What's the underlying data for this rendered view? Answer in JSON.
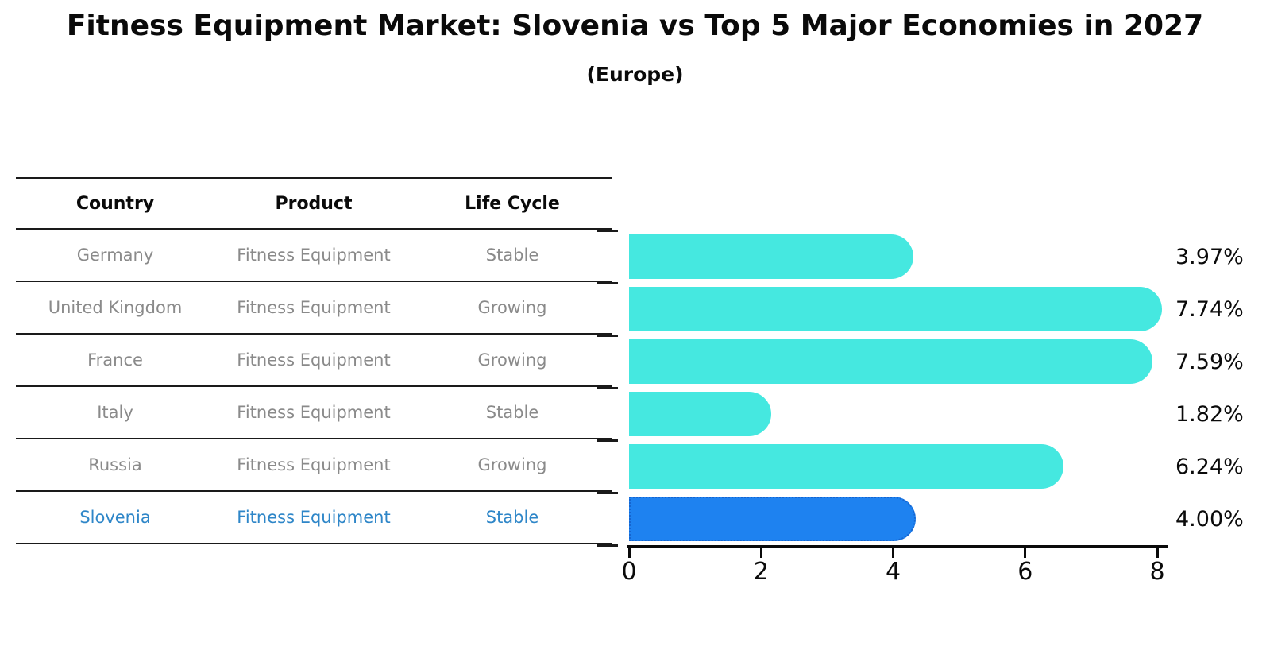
{
  "title": "Fitness Equipment Market: Slovenia vs Top 5 Major Economies in 2027",
  "subtitle": "(Europe)",
  "table": {
    "headers": [
      "Country",
      "Product",
      "Life Cycle"
    ],
    "rows": [
      {
        "country": "Germany",
        "product": "Fitness Equipment",
        "life_cycle": "Stable",
        "highlighted": false
      },
      {
        "country": "United Kingdom",
        "product": "Fitness Equipment",
        "life_cycle": "Growing",
        "highlighted": false
      },
      {
        "country": "France",
        "product": "Fitness Equipment",
        "life_cycle": "Growing",
        "highlighted": false
      },
      {
        "country": "Italy",
        "product": "Fitness Equipment",
        "life_cycle": "Stable",
        "highlighted": false
      },
      {
        "country": "Russia",
        "product": "Fitness Equipment",
        "life_cycle": "Growing",
        "highlighted": false
      },
      {
        "country": "Slovenia",
        "product": "Fitness Equipment",
        "life_cycle": "Stable",
        "highlighted": true
      }
    ]
  },
  "chart_data": {
    "type": "bar",
    "orientation": "horizontal",
    "title": "Fitness Equipment Market: Slovenia vs Top 5 Major Economies in 2027",
    "subtitle": "(Europe)",
    "categories": [
      "Germany",
      "United Kingdom",
      "France",
      "Italy",
      "Russia",
      "Slovenia"
    ],
    "values": [
      3.97,
      7.74,
      7.59,
      1.82,
      6.24,
      4.0
    ],
    "value_labels": [
      "3.97%",
      "7.74%",
      "7.59%",
      "1.82%",
      "6.24%",
      "4.00%"
    ],
    "xlim": [
      0,
      8
    ],
    "x_ticks": [
      "0",
      "2",
      "4",
      "6",
      "8"
    ],
    "grid": false,
    "highlight_index": 5
  },
  "colors": {
    "bar": "#45E8E0",
    "highlight_bar": "#1E82F0",
    "highlight_border": "#1565D0",
    "highlight_text": "#2E86C8",
    "table_text": "#8A8A8A",
    "axis": "#1a1a1a"
  }
}
